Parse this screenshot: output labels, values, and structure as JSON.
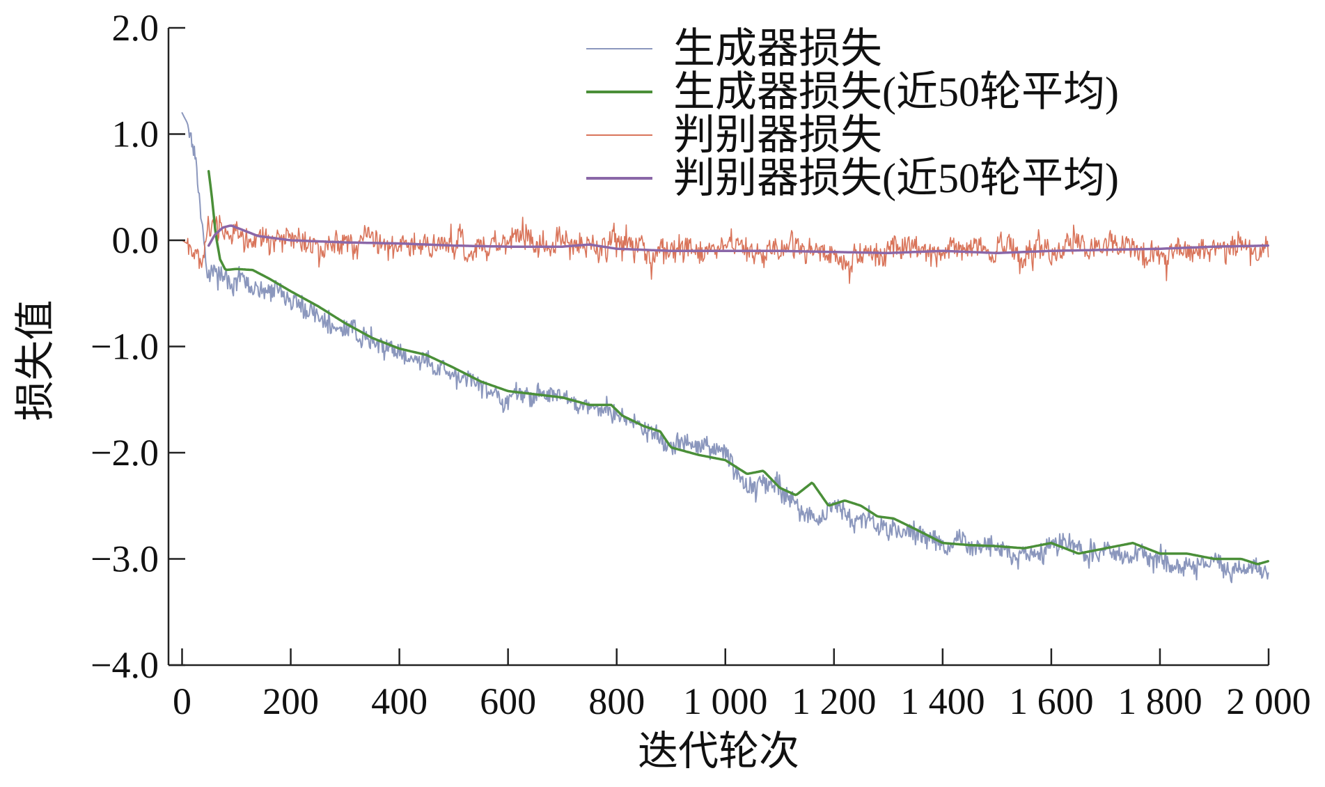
{
  "chart_data": {
    "type": "line",
    "title": "",
    "xlabel": "迭代轮次",
    "ylabel": "损失值",
    "xlim": [
      -25,
      2000
    ],
    "ylim": [
      -4.0,
      2.0
    ],
    "grid": false,
    "legend_position": "top-right",
    "x_ticks": [
      0,
      200,
      400,
      600,
      800,
      1000,
      1200,
      1400,
      1600,
      1800,
      2000
    ],
    "x_tick_labels": [
      "0",
      "200",
      "400",
      "600",
      "800",
      "1 000",
      "1 200",
      "1 400",
      "1 600",
      "1 800",
      "2 000"
    ],
    "y_ticks": [
      2.0,
      1.0,
      0.0,
      -1.0,
      -2.0,
      -3.0,
      -4.0
    ],
    "y_tick_labels": [
      "2.0",
      "1.0",
      "0.0",
      "−1.0",
      "−2.0",
      "−3.0",
      "−4.0"
    ],
    "series": [
      {
        "name": "生成器损失",
        "color": "#8b97bd",
        "width": 2,
        "kind": "noisy",
        "x": [
          0,
          15,
          25,
          35,
          45,
          55,
          70,
          100,
          150,
          200,
          300,
          400,
          500,
          600,
          700,
          750,
          800,
          850,
          900,
          1000,
          1050,
          1100,
          1150,
          1200,
          1250,
          1300,
          1400,
          1500,
          1600,
          1700,
          1800,
          1900,
          1950,
          2000
        ],
        "values": [
          1.2,
          1.05,
          0.85,
          0.3,
          -0.2,
          -0.28,
          -0.3,
          -0.35,
          -0.45,
          -0.58,
          -0.85,
          -1.05,
          -1.3,
          -1.45,
          -1.5,
          -1.55,
          -1.62,
          -1.8,
          -1.95,
          -2.05,
          -2.3,
          -2.35,
          -2.55,
          -2.5,
          -2.6,
          -2.65,
          -2.85,
          -2.9,
          -2.92,
          -2.95,
          -3.0,
          -3.05,
          -3.1,
          -3.15
        ],
        "noise": 0.07
      },
      {
        "name": "生成器损失(近50轮平均)",
        "color": "#4a8f38",
        "width": 3.5,
        "kind": "smooth",
        "x": [
          49,
          55,
          62,
          70,
          80,
          100,
          130,
          160,
          200,
          250,
          300,
          350,
          400,
          450,
          500,
          550,
          600,
          650,
          700,
          750,
          790,
          810,
          850,
          880,
          900,
          950,
          1000,
          1040,
          1070,
          1100,
          1130,
          1160,
          1190,
          1220,
          1250,
          1280,
          1310,
          1350,
          1400,
          1450,
          1500,
          1550,
          1600,
          1650,
          1700,
          1750,
          1800,
          1850,
          1900,
          1950,
          1980,
          2000
        ],
        "values": [
          0.65,
          0.4,
          0.05,
          -0.18,
          -0.28,
          -0.27,
          -0.28,
          -0.36,
          -0.48,
          -0.62,
          -0.78,
          -0.92,
          -1.02,
          -1.08,
          -1.2,
          -1.33,
          -1.42,
          -1.45,
          -1.48,
          -1.55,
          -1.55,
          -1.65,
          -1.75,
          -1.8,
          -1.95,
          -2.02,
          -2.07,
          -2.2,
          -2.17,
          -2.33,
          -2.4,
          -2.28,
          -2.5,
          -2.45,
          -2.5,
          -2.6,
          -2.62,
          -2.72,
          -2.85,
          -2.87,
          -2.88,
          -2.9,
          -2.85,
          -2.95,
          -2.9,
          -2.85,
          -2.95,
          -2.95,
          -3.0,
          -3.0,
          -3.05,
          -3.02
        ],
        "noise": 0
      },
      {
        "name": "判别器损失",
        "color": "#d9745a",
        "width": 1.6,
        "kind": "noisy",
        "x": [
          0,
          15,
          30,
          40,
          50,
          60,
          80,
          100,
          200,
          400,
          600,
          800,
          1000,
          1200,
          1400,
          1600,
          1800,
          2000
        ],
        "values": [
          0.0,
          -0.05,
          -0.22,
          -0.15,
          0.2,
          0.15,
          0.05,
          0.03,
          0.0,
          -0.02,
          -0.05,
          -0.06,
          -0.08,
          -0.09,
          -0.09,
          -0.08,
          -0.07,
          -0.05
        ],
        "noise": 0.09
      },
      {
        "name": "判别器损失(近50轮平均)",
        "color": "#8a67a8",
        "width": 3.5,
        "kind": "smooth",
        "x": [
          49,
          60,
          75,
          90,
          110,
          140,
          200,
          300,
          400,
          500,
          600,
          700,
          750,
          800,
          900,
          1000,
          1100,
          1200,
          1300,
          1400,
          1500,
          1600,
          1700,
          1800,
          1900,
          2000
        ],
        "values": [
          -0.05,
          0.05,
          0.12,
          0.14,
          0.1,
          0.04,
          0.0,
          -0.02,
          -0.03,
          -0.05,
          -0.06,
          -0.06,
          -0.04,
          -0.08,
          -0.1,
          -0.1,
          -0.1,
          -0.11,
          -0.12,
          -0.1,
          -0.12,
          -0.1,
          -0.09,
          -0.08,
          -0.06,
          -0.05
        ],
        "noise": 0
      }
    ]
  }
}
